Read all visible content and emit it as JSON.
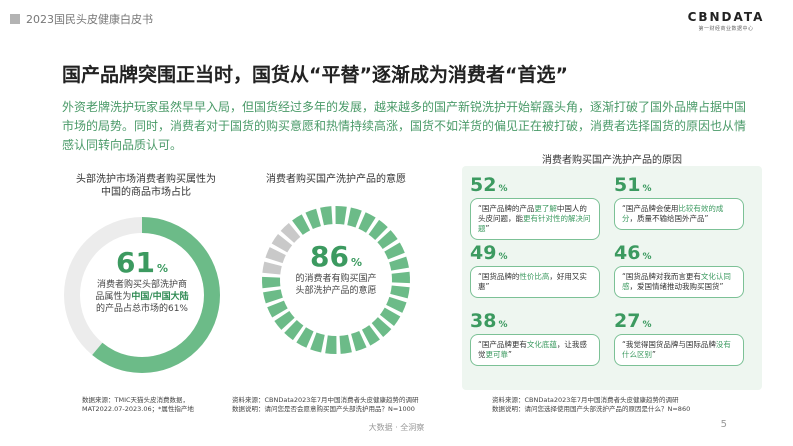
{
  "header": {
    "title": "2023国民头皮健康白皮书"
  },
  "logo": {
    "main": "CBNDATA",
    "sub": "第一财经商业数据中心"
  },
  "page_title": "国产品牌突围正当时，国货从“平替”逐渐成为消费者“首选”",
  "intro": "外资老牌洗护玩家虽然早早入局，但国货经过多年的发展，越来越多的国产新锐洗护开始崭露头角，逐渐打破了国外品牌占据中国市场的局势。同时，消费者对于国货的购买意愿和热情持续高涨，国货不如洋货的偏见正在被打破，消费者选择国货的原因也从情感认同转向品质认可。",
  "left": {
    "title_line1": "头部洗护市场消费者购买属性为",
    "title_line2": "中国的商品市场占比",
    "value": 61,
    "value_text": "61",
    "pct": "%",
    "desc_line1": "消费者购买头部洗护商",
    "desc_pre": "品属性为",
    "desc_bold": "中国/中国大陆",
    "desc_line3": "的产品占总市场的61%",
    "source_line1": "数据来源：TMIC天猫头皮消费数据，",
    "source_line2": "MAT2022.07-2023.06；*属性指产地"
  },
  "middle": {
    "title": "消费者购买国产洗护产品的意愿",
    "value": 86,
    "value_text": "86",
    "pct": "%",
    "desc_line1": "的消费者有购买国产",
    "desc_line2": "头部洗护产品的意愿",
    "source_line1": "资料来源：CBNData2023年7月中国消费者头皮健康趋势的调研",
    "source_line2": "数据说明：请问您是否会愿意购买国产头部洗护用品？N=1000"
  },
  "right": {
    "title": "消费者购买国产洗护产品的原因",
    "cards": [
      {
        "value": "52",
        "pct": "%",
        "p1": "“国产品牌的产品",
        "h1": "更了解",
        "p2": "中国人的头皮问题，能",
        "h2": "更有针对性的解决问题",
        "p3": "”"
      },
      {
        "value": "51",
        "pct": "%",
        "p1": "“国产品牌会使用",
        "h1": "比较有效的成分",
        "p2": "，质量不输给国外产品",
        "h2": "",
        "p3": "”"
      },
      {
        "value": "49",
        "pct": "%",
        "p1": "“国货品牌的",
        "h1": "性价比高",
        "p2": "，好用又实惠",
        "h2": "",
        "p3": "”"
      },
      {
        "value": "46",
        "pct": "%",
        "p1": "“国货品牌对我而言更有",
        "h1": "文化认同感",
        "p2": "，爱国情绪推动我购买国货",
        "h2": "",
        "p3": "”"
      },
      {
        "value": "38",
        "pct": "%",
        "p1": "“国产品牌更有",
        "h1": "文化底蕴",
        "p2": "，让我感觉",
        "h2": "更可靠",
        "p3": "”"
      },
      {
        "value": "27",
        "pct": "%",
        "p1": "“我觉得国货品牌与国际品牌",
        "h1": "没有什么区别",
        "p2": "",
        "h2": "",
        "p3": "”"
      }
    ],
    "source_line1": "资料来源：CBNData2023年7月中国消费者头皮健康趋势的调研",
    "source_line2": "数据说明：请问您选择使用国产头部洗护产品的原因是什么？N=860"
  },
  "footer": {
    "text": "大数据 · 全洞察",
    "page": "5"
  },
  "colors": {
    "accent": "#3c9a60",
    "ring_bg": "#e9e9e9",
    "panel": "#eef6f0"
  }
}
